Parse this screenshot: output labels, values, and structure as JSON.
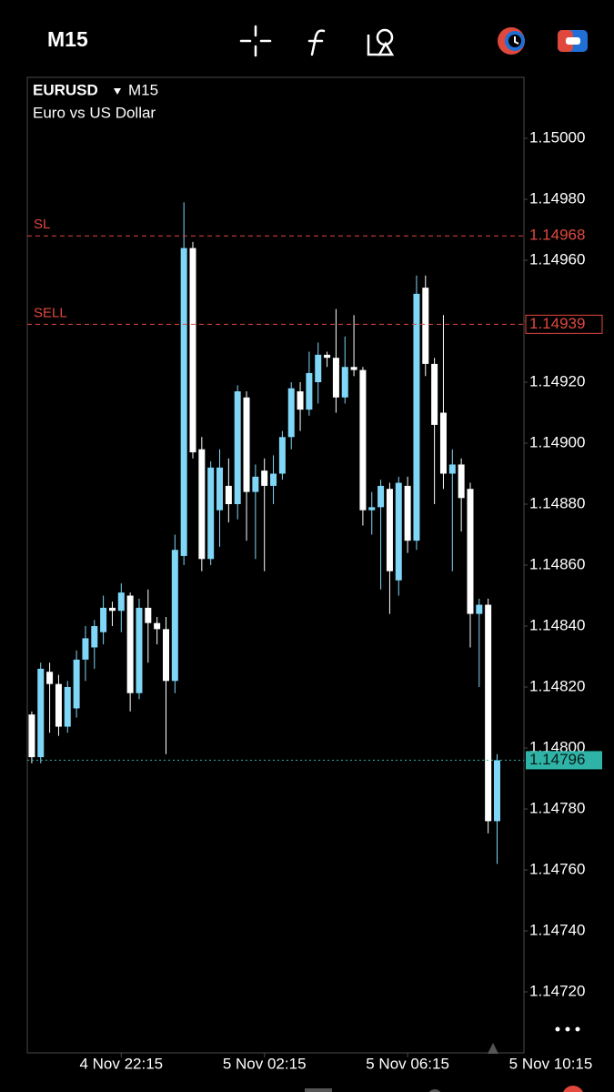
{
  "toolbar": {
    "timeframe": "M15"
  },
  "chart_data": {
    "type": "candlestick",
    "symbol": "EURUSD",
    "timeframe": "M15",
    "description": "Euro vs US Dollar",
    "up_color": "#7fd6f7",
    "down_color": "#ffffff",
    "open": [
      1.14811,
      1.14797,
      1.14825,
      1.14821,
      1.14807,
      1.14813,
      1.14829,
      1.14833,
      1.14838,
      1.14846,
      1.14845,
      1.1485,
      1.14818,
      1.14846,
      1.14841,
      1.14839,
      1.14822,
      1.14863,
      1.14964,
      1.14898,
      1.14862,
      1.14878,
      1.14886,
      1.1488,
      1.14915,
      1.14884,
      1.14891,
      1.14886,
      1.1489,
      1.14902,
      1.14917,
      1.14911,
      1.1492,
      1.14929,
      1.14928,
      1.14915,
      1.14925,
      1.14924,
      1.14878,
      1.14879,
      1.14885,
      1.14855,
      1.14886,
      1.14868,
      1.14951,
      1.14926,
      1.1491,
      1.1489,
      1.14893,
      1.14885,
      1.14844,
      1.14847,
      1.14776
    ],
    "high": [
      1.14812,
      1.14828,
      1.14828,
      1.14824,
      1.14822,
      1.14832,
      1.1484,
      1.14842,
      1.1485,
      1.14848,
      1.14854,
      1.14851,
      1.14849,
      1.14852,
      1.14843,
      1.14843,
      1.1487,
      1.14979,
      1.14966,
      1.14902,
      1.14894,
      1.14898,
      1.14895,
      1.14919,
      1.14917,
      1.14893,
      1.14895,
      1.14896,
      1.14904,
      1.1492,
      1.1492,
      1.1493,
      1.14933,
      1.1493,
      1.14944,
      1.14935,
      1.14942,
      1.14925,
      1.14884,
      1.14888,
      1.14887,
      1.14889,
      1.14889,
      1.14955,
      1.14955,
      1.14928,
      1.14942,
      1.14898,
      1.14895,
      1.14887,
      1.14849,
      1.14849,
      1.14798
    ],
    "low": [
      1.14795,
      1.14795,
      1.14805,
      1.14804,
      1.14805,
      1.1481,
      1.14822,
      1.14826,
      1.14834,
      1.1484,
      1.14838,
      1.14812,
      1.14816,
      1.14828,
      1.14834,
      1.14798,
      1.14818,
      1.1486,
      1.14895,
      1.14858,
      1.1486,
      1.14866,
      1.14874,
      1.14875,
      1.14868,
      1.14862,
      1.14858,
      1.1488,
      1.14888,
      1.14898,
      1.14904,
      1.14909,
      1.14913,
      1.14925,
      1.1491,
      1.14913,
      1.14922,
      1.14873,
      1.1487,
      1.14852,
      1.14844,
      1.1485,
      1.14864,
      1.14865,
      1.14922,
      1.1488,
      1.14885,
      1.14858,
      1.14871,
      1.14833,
      1.1482,
      1.14772,
      1.14762
    ],
    "close": [
      1.14797,
      1.14826,
      1.14821,
      1.14807,
      1.1482,
      1.14829,
      1.14836,
      1.1484,
      1.14846,
      1.14845,
      1.14851,
      1.14818,
      1.14846,
      1.14841,
      1.14839,
      1.14822,
      1.14865,
      1.14964,
      1.14897,
      1.14862,
      1.14892,
      1.14892,
      1.1488,
      1.14917,
      1.14884,
      1.14889,
      1.14886,
      1.1489,
      1.14902,
      1.14918,
      1.14911,
      1.14923,
      1.14929,
      1.14928,
      1.14915,
      1.14925,
      1.14924,
      1.14878,
      1.14879,
      1.14886,
      1.14858,
      1.14887,
      1.14868,
      1.14949,
      1.14926,
      1.14906,
      1.1489,
      1.14893,
      1.14882,
      1.14844,
      1.14847,
      1.14776,
      1.14796
    ],
    "xlim": [
      -0.5,
      55
    ],
    "xticks": [
      {
        "value": 10,
        "label": "4 Nov 22:15"
      },
      {
        "value": 26,
        "label": "5 Nov 02:15"
      },
      {
        "value": 42,
        "label": "5 Nov 06:15"
      },
      {
        "value": 58,
        "label": "5 Nov 10:15"
      }
    ],
    "ylim": [
      1.147,
      1.1502
    ],
    "yticks": [
      {
        "value": 1.15,
        "label": "1.15000"
      },
      {
        "value": 1.1498,
        "label": "1.14980"
      },
      {
        "value": 1.1496,
        "label": "1.14960"
      },
      {
        "value": 1.1494,
        "label": "1.14940"
      },
      {
        "value": 1.1492,
        "label": "1.14920"
      },
      {
        "value": 1.149,
        "label": "1.14900"
      },
      {
        "value": 1.1488,
        "label": "1.14880"
      },
      {
        "value": 1.1486,
        "label": "1.14860"
      },
      {
        "value": 1.1484,
        "label": "1.14840"
      },
      {
        "value": 1.1482,
        "label": "1.14820"
      },
      {
        "value": 1.148,
        "label": "1.14800"
      },
      {
        "value": 1.1478,
        "label": "1.14780"
      },
      {
        "value": 1.1476,
        "label": "1.14760"
      },
      {
        "value": 1.1474,
        "label": "1.14740"
      },
      {
        "value": 1.1472,
        "label": "1.14720"
      }
    ],
    "price_lines": [
      {
        "name": "SL",
        "value": 1.14968,
        "color": "#e0483e",
        "label_style": "plain"
      },
      {
        "name": "SELL",
        "value": 1.14939,
        "color": "#e0483e",
        "label_style": "outline"
      },
      {
        "value": 1.14796,
        "color": "#2fb3a6",
        "label_style": "fill"
      }
    ]
  }
}
